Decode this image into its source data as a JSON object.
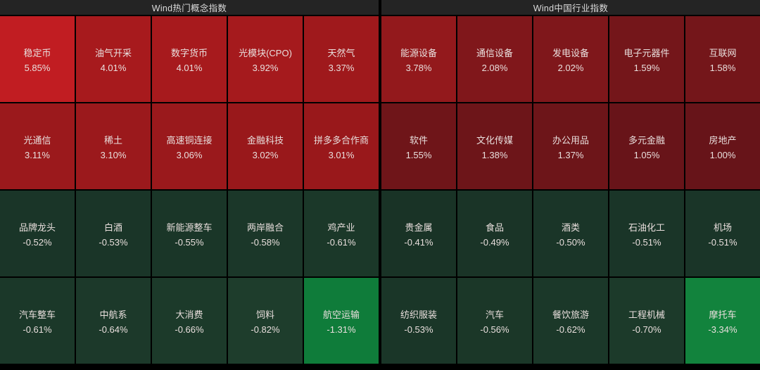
{
  "chart_data": [
    {
      "type": "heatmap",
      "title": "Wind热门概念指数",
      "columns": 5,
      "rows": 4,
      "value_unit": "%",
      "positive_color_hint": "#a71a1d",
      "negative_color_hint": "#1a3528",
      "cells": [
        {
          "label": "稳定币",
          "value": "5.85%",
          "pct": 5.85,
          "color": "#c11d22"
        },
        {
          "label": "油气开采",
          "value": "4.01%",
          "pct": 4.01,
          "color": "#a71a1d"
        },
        {
          "label": "数字货币",
          "value": "4.01%",
          "pct": 4.01,
          "color": "#a71a1d"
        },
        {
          "label": "光模块(CPO)",
          "value": "3.92%",
          "pct": 3.92,
          "color": "#a51a1d"
        },
        {
          "label": "天然气",
          "value": "3.37%",
          "pct": 3.37,
          "color": "#9f191c"
        },
        {
          "label": "光通信",
          "value": "3.11%",
          "pct": 3.11,
          "color": "#9b191c"
        },
        {
          "label": "稀土",
          "value": "3.10%",
          "pct": 3.1,
          "color": "#9b191c"
        },
        {
          "label": "高速铜连接",
          "value": "3.06%",
          "pct": 3.06,
          "color": "#9a191c"
        },
        {
          "label": "金融科技",
          "value": "3.02%",
          "pct": 3.02,
          "color": "#99181b"
        },
        {
          "label": "拼多多合作商",
          "value": "3.01%",
          "pct": 3.01,
          "color": "#99181b"
        },
        {
          "label": "品牌龙头",
          "value": "-0.52%",
          "pct": -0.52,
          "color": "#1a3528"
        },
        {
          "label": "白酒",
          "value": "-0.53%",
          "pct": -0.53,
          "color": "#1a3528"
        },
        {
          "label": "新能源整车",
          "value": "-0.55%",
          "pct": -0.55,
          "color": "#1a3628"
        },
        {
          "label": "两岸融合",
          "value": "-0.58%",
          "pct": -0.58,
          "color": "#1b3729"
        },
        {
          "label": "鸡产业",
          "value": "-0.61%",
          "pct": -0.61,
          "color": "#1b3829"
        },
        {
          "label": "汽车整车",
          "value": "-0.61%",
          "pct": -0.61,
          "color": "#1b3829"
        },
        {
          "label": "中航系",
          "value": "-0.64%",
          "pct": -0.64,
          "color": "#1c392a"
        },
        {
          "label": "大消费",
          "value": "-0.66%",
          "pct": -0.66,
          "color": "#1c3a2a"
        },
        {
          "label": "饲料",
          "value": "-0.82%",
          "pct": -0.82,
          "color": "#1e3d2c"
        },
        {
          "label": "航空运输",
          "value": "-1.31%",
          "pct": -1.31,
          "color": "#0f7c3a"
        }
      ]
    },
    {
      "type": "heatmap",
      "title": "Wind中国行业指数",
      "columns": 5,
      "rows": 4,
      "value_unit": "%",
      "positive_color_hint": "#80171b",
      "negative_color_hint": "#1a3528",
      "cells": [
        {
          "label": "能源设备",
          "value": "3.78%",
          "pct": 3.78,
          "color": "#93191c"
        },
        {
          "label": "通信设备",
          "value": "2.08%",
          "pct": 2.08,
          "color": "#80171b"
        },
        {
          "label": "发电设备",
          "value": "2.02%",
          "pct": 2.02,
          "color": "#7f171b"
        },
        {
          "label": "电子元器件",
          "value": "1.59%",
          "pct": 1.59,
          "color": "#74161a"
        },
        {
          "label": "互联网",
          "value": "1.58%",
          "pct": 1.58,
          "color": "#74161a"
        },
        {
          "label": "软件",
          "value": "1.55%",
          "pct": 1.55,
          "color": "#6f1519"
        },
        {
          "label": "文化传媒",
          "value": "1.38%",
          "pct": 1.38,
          "color": "#6d1519"
        },
        {
          "label": "办公用品",
          "value": "1.37%",
          "pct": 1.37,
          "color": "#6d1519"
        },
        {
          "label": "多元金融",
          "value": "1.05%",
          "pct": 1.05,
          "color": "#681419"
        },
        {
          "label": "房地产",
          "value": "1.00%",
          "pct": 1.0,
          "color": "#671419"
        },
        {
          "label": "贵金属",
          "value": "-0.41%",
          "pct": -0.41,
          "color": "#193326"
        },
        {
          "label": "食品",
          "value": "-0.49%",
          "pct": -0.49,
          "color": "#1a3427"
        },
        {
          "label": "酒类",
          "value": "-0.50%",
          "pct": -0.5,
          "color": "#1a3528"
        },
        {
          "label": "石油化工",
          "value": "-0.51%",
          "pct": -0.51,
          "color": "#1a3528"
        },
        {
          "label": "机场",
          "value": "-0.51%",
          "pct": -0.51,
          "color": "#1a3528"
        },
        {
          "label": "纺织服装",
          "value": "-0.53%",
          "pct": -0.53,
          "color": "#1a3628"
        },
        {
          "label": "汽车",
          "value": "-0.56%",
          "pct": -0.56,
          "color": "#1b3728"
        },
        {
          "label": "餐饮旅游",
          "value": "-0.62%",
          "pct": -0.62,
          "color": "#1b3829"
        },
        {
          "label": "工程机械",
          "value": "-0.70%",
          "pct": -0.7,
          "color": "#1c3a2a"
        },
        {
          "label": "摩托车",
          "value": "-3.34%",
          "pct": -3.34,
          "color": "#12833d"
        }
      ]
    }
  ]
}
